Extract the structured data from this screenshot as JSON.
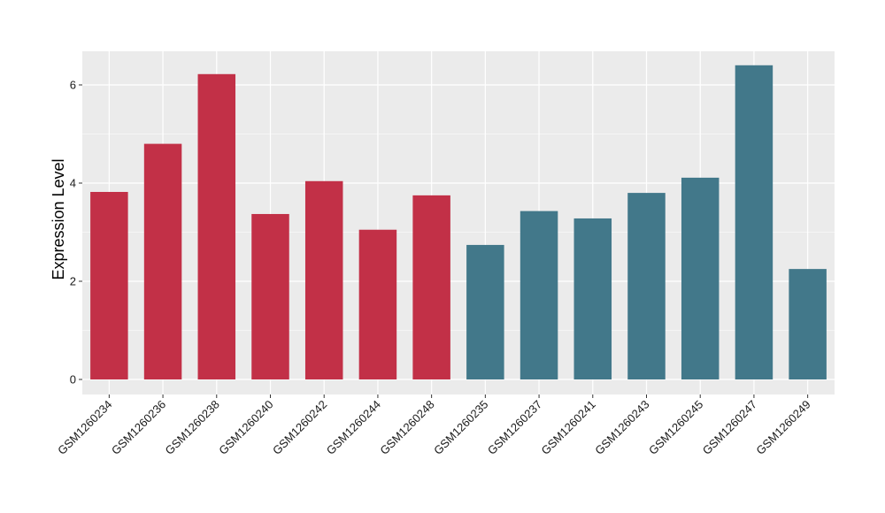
{
  "chart_data": {
    "type": "bar",
    "title": "",
    "xlabel": "",
    "ylabel": "Expression Level",
    "ylim": [
      0,
      6.7
    ],
    "yticks": [
      0,
      2,
      4,
      6
    ],
    "grid": true,
    "categories": [
      "GSM1260234",
      "GSM1260236",
      "GSM1260238",
      "GSM1260240",
      "GSM1260242",
      "GSM1260244",
      "GSM1260248",
      "GSM1260235",
      "GSM1260237",
      "GSM1260241",
      "GSM1260243",
      "GSM1260245",
      "GSM1260247",
      "GSM1260249"
    ],
    "values": [
      3.82,
      4.8,
      6.22,
      3.37,
      4.04,
      3.05,
      3.75,
      2.74,
      3.43,
      3.28,
      3.8,
      4.11,
      6.4,
      2.25
    ],
    "groups": [
      0,
      0,
      0,
      0,
      0,
      0,
      0,
      1,
      1,
      1,
      1,
      1,
      1,
      1
    ],
    "colors": [
      "#c23047",
      "#42788a"
    ],
    "background": "#ebebeb",
    "grid_color": "#ffffff"
  }
}
